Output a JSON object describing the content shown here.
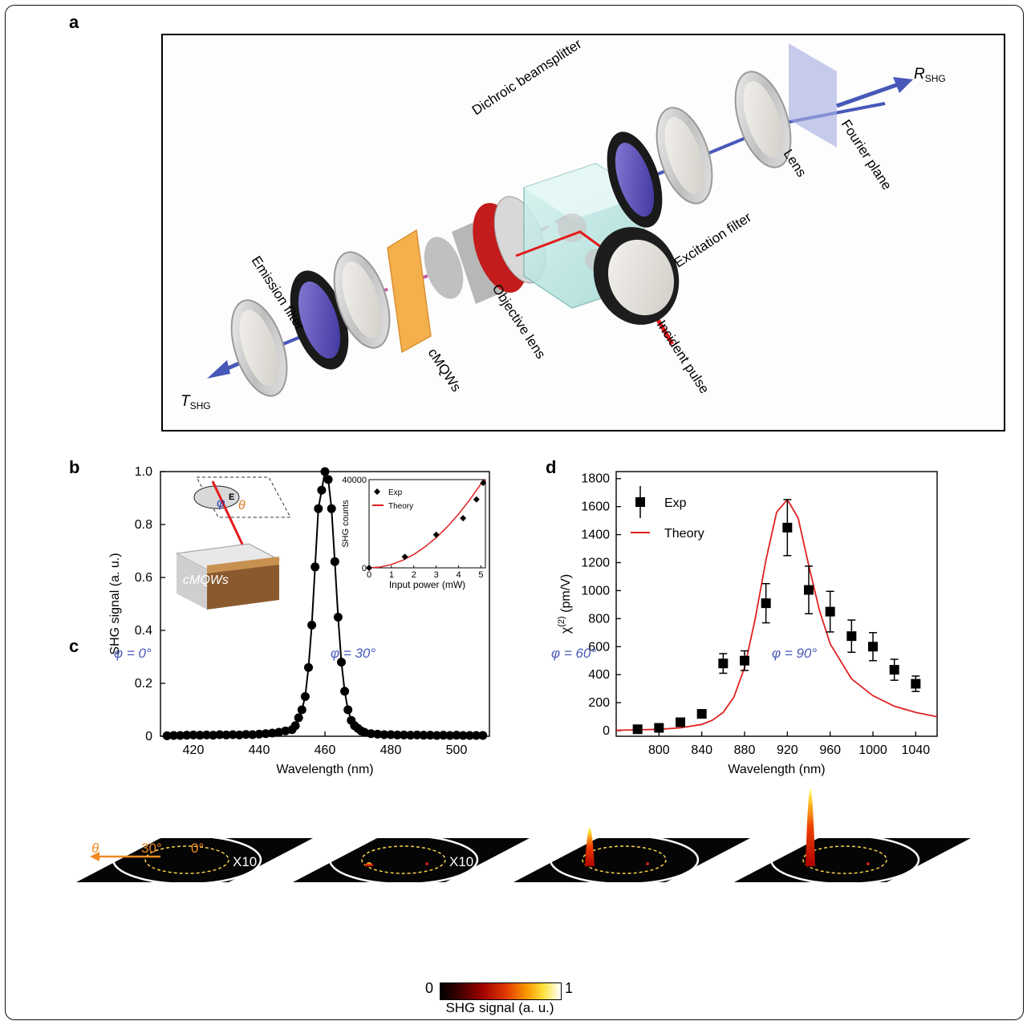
{
  "panel_labels": {
    "a": "a",
    "b": "b",
    "c": "c",
    "d": "d"
  },
  "panel_a": {
    "labels": {
      "emission_filter": "Emission filter",
      "dichroic": "Dichroic beamsplitter",
      "lens": "Lens",
      "fourier_plane": "Fourier plane",
      "excitation_filter": "Excitation filter",
      "objective_lens": "Objective lens",
      "incident_pulse": "Incident pulse",
      "cmqws": "cMQWs",
      "t_shg_main": "T",
      "t_shg_sub": "SHG",
      "r_shg_main": "R",
      "r_shg_sub": "SHG"
    },
    "colors": {
      "blue_beam": "#4758b8",
      "red_beam": "#e21b1b",
      "pink_beam": "#c65aa8",
      "sample": "#f3b04c"
    }
  },
  "panel_b": {
    "inset_sample_label": "cMQWs",
    "inset_phi": "φ",
    "inset_theta": "θ",
    "inset_e": "E"
  },
  "panel_c": {
    "titles": [
      "φ = 0°",
      "φ = 30°",
      "φ = 60°",
      "φ = 90°"
    ],
    "multipliers": [
      "X10",
      "X10",
      "",
      ""
    ],
    "theta_label": "θ",
    "angle_outer": "30°",
    "angle_inner": "0°",
    "colorbar": {
      "min_label": "0",
      "max_label": "1",
      "label": "SHG signal (a. u.)"
    }
  },
  "chart_data": [
    {
      "id": "b-main",
      "type": "scatter",
      "xlabel": "Wavelength (nm)",
      "ylabel": "SHG signal (a. u.)",
      "xlim": [
        410,
        510
      ],
      "ylim": [
        0,
        1.0
      ],
      "xticks": [
        420,
        440,
        460,
        480,
        500
      ],
      "yticks": [
        0,
        0.2,
        0.4,
        0.6,
        0.8,
        1.0
      ],
      "ytick_labels": [
        "0",
        "0.2",
        "0.4",
        "0.6",
        "0.8",
        "1.0"
      ],
      "x": [
        412,
        414,
        416,
        418,
        420,
        422,
        424,
        426,
        428,
        430,
        432,
        434,
        436,
        438,
        440,
        442,
        444,
        446,
        448,
        450,
        451,
        452,
        453,
        454,
        455,
        456,
        457,
        458,
        459,
        460,
        461,
        462,
        463,
        464,
        465,
        466,
        467,
        468,
        469,
        470,
        471,
        472,
        474,
        476,
        478,
        480,
        482,
        484,
        486,
        488,
        490,
        492,
        494,
        496,
        498,
        500,
        502,
        504,
        506,
        508
      ],
      "y": [
        0.002,
        0.003,
        0.003,
        0.004,
        0.005,
        0.004,
        0.005,
        0.004,
        0.006,
        0.005,
        0.006,
        0.005,
        0.007,
        0.006,
        0.008,
        0.01,
        0.012,
        0.015,
        0.02,
        0.025,
        0.04,
        0.07,
        0.1,
        0.15,
        0.26,
        0.42,
        0.64,
        0.86,
        0.93,
        1.0,
        0.97,
        0.86,
        0.66,
        0.45,
        0.28,
        0.17,
        0.1,
        0.06,
        0.04,
        0.03,
        0.02,
        0.015,
        0.01,
        0.008,
        0.006,
        0.006,
        0.005,
        0.005,
        0.004,
        0.005,
        0.004,
        0.004,
        0.003,
        0.004,
        0.003,
        0.004,
        0.003,
        0.003,
        0.003,
        0.003
      ],
      "series_style": "black markers joined by a line"
    },
    {
      "id": "b-inset",
      "type": "scatter",
      "xlabel": "Input power (mW)",
      "ylabel": "SHG counts",
      "xlim": [
        0,
        5.2
      ],
      "ylim": [
        0,
        40000
      ],
      "xticks": [
        0,
        1,
        2,
        3,
        4,
        5
      ],
      "yticks": [
        0,
        40000
      ],
      "series": [
        {
          "name": "Exp",
          "x": [
            0,
            1.6,
            3.0,
            4.2,
            4.8,
            5.1
          ],
          "y": [
            0,
            5000,
            15000,
            22500,
            31000,
            38500
          ]
        },
        {
          "name": "Theory",
          "x": [
            0,
            0.5,
            1,
            1.5,
            2,
            2.5,
            3,
            3.5,
            4,
            4.5,
            5,
            5.2
          ],
          "y": [
            0,
            380,
            1520,
            3420,
            6090,
            9510,
            13700,
            18640,
            24350,
            30820,
            38050,
            41150
          ]
        }
      ],
      "legend": "top-left"
    },
    {
      "id": "d",
      "type": "scatter",
      "xlabel": "Wavelength (nm)",
      "ylabel_main": "χ",
      "ylabel_sup": "(2)",
      "ylabel_unit": " (pm/V)",
      "xlim": [
        760,
        1060
      ],
      "ylim": [
        -40,
        1850
      ],
      "xticks": [
        800,
        840,
        880,
        920,
        960,
        1000,
        1040
      ],
      "yticks": [
        0,
        200,
        400,
        600,
        800,
        1000,
        1200,
        1400,
        1600,
        1800
      ],
      "series": [
        {
          "name": "Exp",
          "x": [
            780,
            800,
            820,
            840,
            860,
            880,
            900,
            920,
            940,
            960,
            980,
            1000,
            1020,
            1040
          ],
          "y": [
            10,
            20,
            60,
            120,
            480,
            500,
            910,
            1450,
            1005,
            850,
            675,
            600,
            435,
            335
          ],
          "err": [
            0,
            0,
            0,
            0,
            70,
            70,
            140,
            200,
            170,
            145,
            115,
            100,
            75,
            55
          ]
        },
        {
          "name": "Theory",
          "x": [
            760,
            780,
            800,
            820,
            840,
            850,
            860,
            870,
            880,
            890,
            900,
            910,
            920,
            930,
            940,
            950,
            960,
            980,
            1000,
            1020,
            1040,
            1060
          ],
          "y": [
            3,
            6,
            10,
            20,
            45,
            75,
            130,
            240,
            450,
            800,
            1220,
            1560,
            1650,
            1520,
            1180,
            860,
            620,
            370,
            250,
            175,
            130,
            100
          ]
        }
      ],
      "legend": "top-left",
      "colors": {
        "exp": "#000000",
        "theory": "#e02020"
      }
    }
  ]
}
